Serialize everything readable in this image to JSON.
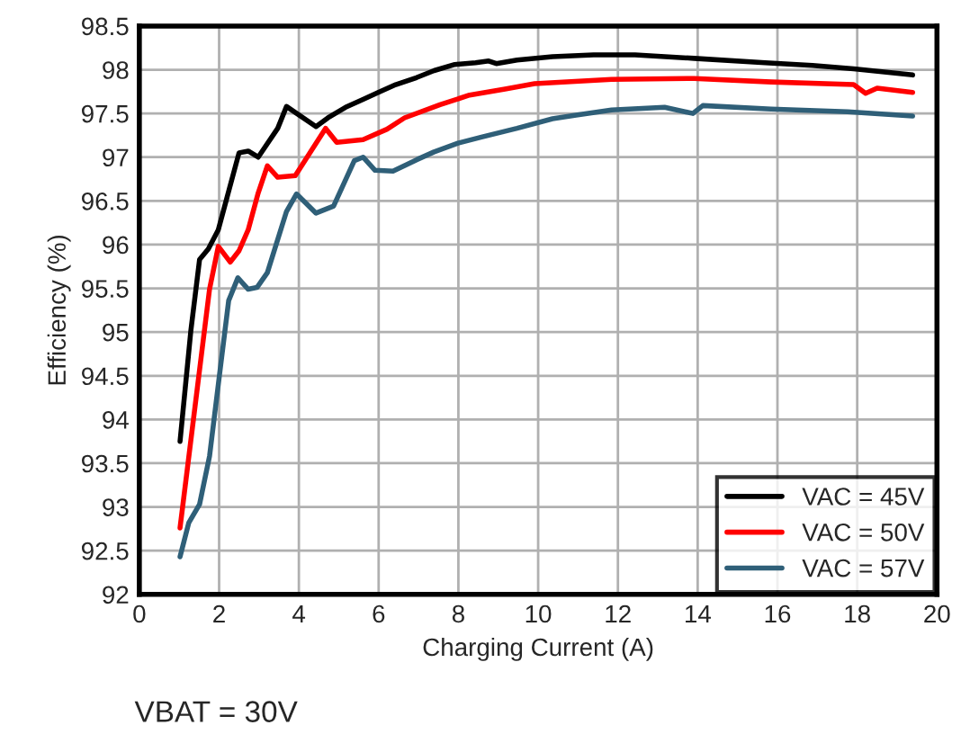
{
  "chart_data": {
    "type": "line",
    "xlabel": "Charging Current (A)",
    "ylabel": "Efficiency (%)",
    "annotations": [
      "VBAT = 30V"
    ],
    "xlim": [
      0,
      20
    ],
    "xticks": [
      0,
      2,
      4,
      6,
      8,
      10,
      12,
      14,
      16,
      18,
      20
    ],
    "ylim": [
      92,
      98.5
    ],
    "yticks": [
      92,
      92.5,
      93,
      93.5,
      94,
      94.5,
      95,
      95.5,
      96,
      96.5,
      97,
      97.5,
      98,
      98.5
    ],
    "grid": true,
    "legend": "bottom right",
    "marker": "none",
    "line_style": "solid",
    "series": [
      {
        "name": "VAC = 45V",
        "color": "#000000",
        "x": [
          1.02,
          1.29,
          1.51,
          1.73,
          1.98,
          2.5,
          2.73,
          2.98,
          3.47,
          3.69,
          4.43,
          4.73,
          5.17,
          5.61,
          5.99,
          6.43,
          6.95,
          7.39,
          7.91,
          8.43,
          8.76,
          8.95,
          9.47,
          10.36,
          11.39,
          12.43,
          13.91,
          15.69,
          16.88,
          17.91,
          19.39
        ],
        "values": [
          93.75,
          95.01,
          95.83,
          95.95,
          96.17,
          97.05,
          97.07,
          97.0,
          97.33,
          97.58,
          97.35,
          97.45,
          97.57,
          97.66,
          97.74,
          97.83,
          97.91,
          97.99,
          98.06,
          98.08,
          98.1,
          98.07,
          98.11,
          98.15,
          98.17,
          98.17,
          98.13,
          98.08,
          98.05,
          98.01,
          97.94
        ]
      },
      {
        "name": "VAC = 50V",
        "color": "#ff0000",
        "x": [
          1.02,
          1.76,
          1.98,
          2.28,
          2.5,
          2.73,
          2.98,
          3.21,
          3.47,
          3.91,
          4.67,
          4.95,
          5.61,
          6.21,
          6.65,
          7.54,
          8.28,
          9.17,
          9.91,
          11.84,
          13.91,
          15.84,
          17.91,
          18.21,
          18.5,
          19.39
        ],
        "values": [
          92.76,
          95.49,
          95.98,
          95.8,
          95.93,
          96.17,
          96.59,
          96.9,
          96.77,
          96.79,
          97.33,
          97.17,
          97.2,
          97.32,
          97.45,
          97.6,
          97.71,
          97.78,
          97.84,
          97.89,
          97.9,
          97.86,
          97.83,
          97.73,
          97.79,
          97.74
        ]
      },
      {
        "name": "VAC = 57V",
        "color": "#2f5f78",
        "x": [
          1.02,
          1.24,
          1.51,
          1.76,
          1.98,
          2.24,
          2.47,
          2.73,
          2.95,
          3.21,
          3.69,
          3.94,
          4.43,
          4.87,
          5.39,
          5.61,
          5.91,
          6.36,
          6.95,
          7.39,
          7.99,
          8.58,
          9.47,
          10.36,
          10.95,
          11.84,
          13.17,
          13.88,
          14.13,
          15.84,
          17.76,
          19.39
        ],
        "values": [
          92.43,
          92.82,
          93.03,
          93.58,
          94.4,
          95.36,
          95.62,
          95.49,
          95.51,
          95.68,
          96.38,
          96.58,
          96.36,
          96.44,
          96.96,
          97.0,
          96.85,
          96.84,
          96.97,
          97.06,
          97.16,
          97.23,
          97.33,
          97.44,
          97.48,
          97.54,
          97.57,
          97.5,
          97.59,
          97.55,
          97.52,
          97.47
        ]
      }
    ]
  }
}
